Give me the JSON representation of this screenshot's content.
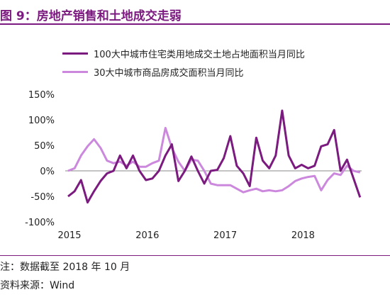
{
  "figure": {
    "title": "图 9：房地产销售和土地成交走弱",
    "note": "注：数据截至 2018 年 10 月",
    "source": "资料来源：Wind"
  },
  "colors": {
    "brand": "#7b1a7f",
    "series1": "#7b1a7f",
    "series2": "#cc88dd"
  },
  "chart_data": {
    "type": "line",
    "title": "",
    "xlabel": "",
    "ylabel": "",
    "ylim": [
      -100,
      150
    ],
    "yticks": [
      -100,
      -50,
      0,
      50,
      100,
      150
    ],
    "ytick_labels": [
      "-100%",
      "-50%",
      "0%",
      "50%",
      "100%",
      "150%"
    ],
    "xticks": [
      "2015",
      "2016",
      "2017",
      "2018"
    ],
    "grid": false,
    "legend_position": "top",
    "x": [
      "2015-01",
      "2015-02",
      "2015-03",
      "2015-04",
      "2015-05",
      "2015-06",
      "2015-07",
      "2015-08",
      "2015-09",
      "2015-10",
      "2015-11",
      "2015-12",
      "2016-01",
      "2016-02",
      "2016-03",
      "2016-04",
      "2016-05",
      "2016-06",
      "2016-07",
      "2016-08",
      "2016-09",
      "2016-10",
      "2016-11",
      "2016-12",
      "2017-01",
      "2017-02",
      "2017-03",
      "2017-04",
      "2017-05",
      "2017-06",
      "2017-07",
      "2017-08",
      "2017-09",
      "2017-10",
      "2017-11",
      "2017-12",
      "2018-01",
      "2018-02",
      "2018-03",
      "2018-04",
      "2018-05",
      "2018-06",
      "2018-07",
      "2018-08",
      "2018-09",
      "2018-10"
    ],
    "series": [
      {
        "name": "100大中城市住宅类用地成交土地占地面积当月同比",
        "values": [
          -50,
          -40,
          -18,
          -62,
          -40,
          -20,
          -5,
          0,
          30,
          5,
          30,
          0,
          -18,
          -15,
          0,
          30,
          52,
          -20,
          0,
          28,
          0,
          -25,
          0,
          2,
          25,
          68,
          10,
          -5,
          -30,
          65,
          20,
          5,
          30,
          118,
          30,
          5,
          12,
          5,
          10,
          48,
          52,
          80,
          0,
          22,
          -15,
          -52
        ]
      },
      {
        "name": "30大中城市商品房成交面积当月同比",
        "values": [
          0,
          5,
          30,
          48,
          62,
          45,
          20,
          15,
          18,
          10,
          18,
          8,
          8,
          15,
          20,
          84,
          45,
          18,
          0,
          22,
          20,
          0,
          -25,
          -28,
          -28,
          -28,
          -35,
          -42,
          -38,
          -35,
          -40,
          -38,
          -40,
          -38,
          -30,
          -20,
          -15,
          -12,
          -10,
          -38,
          -18,
          -5,
          -8,
          10,
          0,
          -3
        ]
      }
    ]
  }
}
